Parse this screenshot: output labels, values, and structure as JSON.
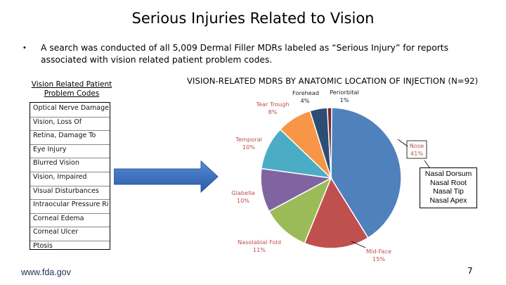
{
  "slide": {
    "title": "Serious Injuries Related to Vision",
    "bullet_marker": "•",
    "bullet_text": "A search was conducted of all 5,009 Dermal Filler MDRs labeled as “Serious Injury” for reports associated with vision related patient problem codes.",
    "footer_url": "www.fda.gov",
    "page_number": "7"
  },
  "problem_codes": {
    "title": "Vision Related Patient Problem Codes",
    "items": [
      "Optical Nerve Damage",
      "Vision, Loss Of",
      "Retina, Damage To",
      "Eye Injury",
      "Blurred Vision",
      "Vision, Impaired",
      "Visual Disturbances",
      "Intraocular Pressure Rise",
      "Corneal Edema",
      "Corneal Ulcer",
      "Ptosis"
    ]
  },
  "callout": {
    "lines": [
      "Nasal Dorsum",
      "Nasal Root",
      "Nasal Tip",
      "Nasal Apex"
    ]
  },
  "chart_data": {
    "type": "pie",
    "title": "VISION-RELATED MDRS BY ANATOMIC LOCATION OF INJECTION (N=92)",
    "slices": [
      {
        "name": "Nose",
        "label": "41%",
        "value": 41,
        "color": "#4f81bd"
      },
      {
        "name": "Mid-Face",
        "label": "15%",
        "value": 15,
        "color": "#c0504d"
      },
      {
        "name": "Nasolabial Fold",
        "label": "11%",
        "value": 11,
        "color": "#9bbb59"
      },
      {
        "name": "Glabella",
        "label": "10%",
        "value": 10,
        "color": "#8064a2"
      },
      {
        "name": "Temporal",
        "label": "10%",
        "value": 10,
        "color": "#4bacc6"
      },
      {
        "name": "Tear Trough",
        "label": "8%",
        "value": 8,
        "color": "#f79646"
      },
      {
        "name": "Forehead",
        "label": "4%",
        "value": 4,
        "color": "#2c4d75"
      },
      {
        "name": "Periorbital",
        "label": "1%",
        "value": 1,
        "color": "#772c2a"
      }
    ],
    "legend": "none",
    "grid": false
  }
}
